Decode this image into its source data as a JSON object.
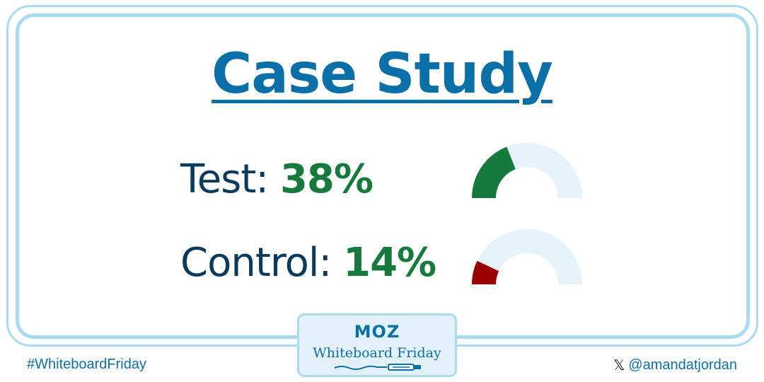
{
  "title": "Case Study",
  "rows": [
    {
      "label": "Test:",
      "value": "38%",
      "percent": 38,
      "fill_color": "#177a3d"
    },
    {
      "label": "Control:",
      "value": "14%",
      "percent": 14,
      "fill_color": "#990000"
    }
  ],
  "gauge_track_color": "#e6f3fa",
  "badge": {
    "logo": "MOZ",
    "text": "Whiteboard Friday"
  },
  "footer": {
    "hashtag": "#WhiteboardFriday",
    "handle": "@amandatjordan",
    "handle_icon": "x-logo-icon"
  },
  "colors": {
    "accent": "#0b6fa8",
    "frame": "#a9dcf2",
    "value_green": "#177a3d",
    "text_dark": "#0b3b5c"
  }
}
